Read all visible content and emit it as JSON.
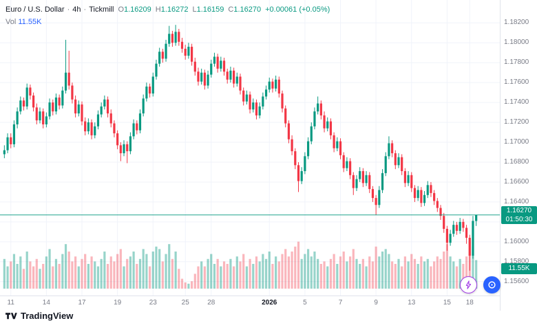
{
  "colors": {
    "up": "#089981",
    "down": "#F23645",
    "accent_blue": "#2962FF",
    "grid": "#f0f3fa",
    "axis_text": "#787b86",
    "badge_bg": "#089981"
  },
  "header": {
    "symbol": "Euro / U.S. Dollar",
    "sep": "·",
    "interval": "4h",
    "broker": "Tickmill",
    "o_label": "O",
    "o": "1.16209",
    "h_label": "H",
    "h": "1.16272",
    "l_label": "L",
    "l": "1.16159",
    "c_label": "C",
    "c": "1.16270",
    "change": "+0.00061 (+0.05%)",
    "vol_label": "Vol",
    "vol_value": "11.55K"
  },
  "price_axis": {
    "badge_price": "1.16270",
    "badge_countdown": "01:50:30",
    "vol_badge": "11.55K"
  },
  "footer": {
    "logo_text": "TradingView"
  },
  "icons": {
    "fab1": "lightning-icon",
    "fab2": "assistant-icon"
  },
  "chart_data": {
    "type": "candlestick",
    "title": "Euro / U.S. Dollar · 4h · Tickmill",
    "ylim": [
      1.1546,
      1.1843
    ],
    "y_tick_labels": [
      "1.18200",
      "1.18000",
      "1.17800",
      "1.17600",
      "1.17400",
      "1.17200",
      "1.17000",
      "1.16800",
      "1.16600",
      "1.16400",
      "1.16200",
      "1.16000",
      "1.15800",
      "1.15600"
    ],
    "x_ticks": [
      {
        "label": "11",
        "i": 2
      },
      {
        "label": "14",
        "i": 13
      },
      {
        "label": "17",
        "i": 24
      },
      {
        "label": "19",
        "i": 35
      },
      {
        "label": "23",
        "i": 46
      },
      {
        "label": "25",
        "i": 56
      },
      {
        "label": "28",
        "i": 64
      },
      {
        "label": "2026",
        "i": 82,
        "major": true
      },
      {
        "label": "5",
        "i": 93
      },
      {
        "label": "7",
        "i": 104
      },
      {
        "label": "9",
        "i": 115
      },
      {
        "label": "13",
        "i": 126
      },
      {
        "label": "15",
        "i": 137
      },
      {
        "label": "18",
        "i": 144
      }
    ],
    "current_price": 1.1627,
    "last_volume_k": 11.55,
    "candles": [
      [
        1.1688,
        1.1697,
        1.1684,
        1.1692
      ],
      [
        1.1692,
        1.1709,
        1.1689,
        1.1705
      ],
      [
        1.1705,
        1.1709,
        1.1694,
        1.1698
      ],
      [
        1.1698,
        1.1722,
        1.1695,
        1.1718
      ],
      [
        1.1718,
        1.1735,
        1.1714,
        1.1731
      ],
      [
        1.1731,
        1.1746,
        1.1728,
        1.1742
      ],
      [
        1.1742,
        1.1745,
        1.1732,
        1.1736
      ],
      [
        1.1736,
        1.1759,
        1.1733,
        1.1755
      ],
      [
        1.1755,
        1.1758,
        1.1743,
        1.1747
      ],
      [
        1.1747,
        1.175,
        1.1731,
        1.1735
      ],
      [
        1.1735,
        1.1739,
        1.1718,
        1.1722
      ],
      [
        1.1722,
        1.1735,
        1.1719,
        1.1731
      ],
      [
        1.1731,
        1.1734,
        1.1714,
        1.1718
      ],
      [
        1.1718,
        1.173,
        1.1715,
        1.1726
      ],
      [
        1.1726,
        1.1744,
        1.1723,
        1.174
      ],
      [
        1.174,
        1.1743,
        1.1727,
        1.1731
      ],
      [
        1.1731,
        1.1749,
        1.1728,
        1.1745
      ],
      [
        1.1745,
        1.1748,
        1.1733,
        1.1737
      ],
      [
        1.1737,
        1.1756,
        1.1734,
        1.1752
      ],
      [
        1.1752,
        1.1803,
        1.1749,
        1.177
      ],
      [
        1.177,
        1.1792,
        1.1753,
        1.1757
      ],
      [
        1.1757,
        1.176,
        1.1739,
        1.1743
      ],
      [
        1.1743,
        1.1747,
        1.1725,
        1.1729
      ],
      [
        1.1729,
        1.1742,
        1.1726,
        1.1738
      ],
      [
        1.1738,
        1.1741,
        1.1717,
        1.1721
      ],
      [
        1.1721,
        1.1725,
        1.1707,
        1.1711
      ],
      [
        1.1711,
        1.1724,
        1.1708,
        1.172
      ],
      [
        1.172,
        1.1723,
        1.1703,
        1.1707
      ],
      [
        1.1707,
        1.172,
        1.1704,
        1.1716
      ],
      [
        1.1716,
        1.1732,
        1.1713,
        1.1728
      ],
      [
        1.1728,
        1.174,
        1.1725,
        1.1736
      ],
      [
        1.1736,
        1.1747,
        1.1733,
        1.1743
      ],
      [
        1.1743,
        1.1746,
        1.1725,
        1.1729
      ],
      [
        1.1729,
        1.1733,
        1.1715,
        1.1719
      ],
      [
        1.1719,
        1.1722,
        1.1705,
        1.1709
      ],
      [
        1.1709,
        1.1712,
        1.1693,
        1.1697
      ],
      [
        1.1697,
        1.17,
        1.1681,
        1.1689
      ],
      [
        1.1689,
        1.1702,
        1.1686,
        1.1698
      ],
      [
        1.1698,
        1.1701,
        1.1679,
        1.1691
      ],
      [
        1.1691,
        1.171,
        1.1688,
        1.1706
      ],
      [
        1.1706,
        1.1723,
        1.1703,
        1.1719
      ],
      [
        1.1719,
        1.1722,
        1.1708,
        1.1712
      ],
      [
        1.1712,
        1.1733,
        1.1709,
        1.1729
      ],
      [
        1.1729,
        1.1748,
        1.1726,
        1.1744
      ],
      [
        1.1744,
        1.176,
        1.1741,
        1.1756
      ],
      [
        1.1756,
        1.1759,
        1.1745,
        1.1749
      ],
      [
        1.1749,
        1.177,
        1.1746,
        1.1766
      ],
      [
        1.1766,
        1.1783,
        1.1763,
        1.1779
      ],
      [
        1.1779,
        1.1795,
        1.1776,
        1.1791
      ],
      [
        1.1791,
        1.1794,
        1.178,
        1.1784
      ],
      [
        1.1784,
        1.1803,
        1.1781,
        1.1799
      ],
      [
        1.1799,
        1.1817,
        1.1796,
        1.1809
      ],
      [
        1.1809,
        1.1812,
        1.1796,
        1.18
      ],
      [
        1.18,
        1.1818,
        1.1797,
        1.1811
      ],
      [
        1.1811,
        1.1814,
        1.1797,
        1.1801
      ],
      [
        1.1801,
        1.1805,
        1.179,
        1.1794
      ],
      [
        1.1794,
        1.1798,
        1.1783,
        1.1787
      ],
      [
        1.1787,
        1.18,
        1.1784,
        1.1796
      ],
      [
        1.1796,
        1.1799,
        1.1777,
        1.1781
      ],
      [
        1.1781,
        1.1785,
        1.1767,
        1.1771
      ],
      [
        1.1771,
        1.1775,
        1.1757,
        1.1761
      ],
      [
        1.1761,
        1.1774,
        1.1758,
        1.177
      ],
      [
        1.177,
        1.1773,
        1.1753,
        1.1757
      ],
      [
        1.1757,
        1.1772,
        1.1754,
        1.1768
      ],
      [
        1.1768,
        1.1783,
        1.1765,
        1.1779
      ],
      [
        1.1779,
        1.179,
        1.1776,
        1.1786
      ],
      [
        1.1786,
        1.1789,
        1.177,
        1.1774
      ],
      [
        1.1774,
        1.1786,
        1.1771,
        1.1782
      ],
      [
        1.1782,
        1.1785,
        1.1767,
        1.1771
      ],
      [
        1.1771,
        1.1774,
        1.1759,
        1.1763
      ],
      [
        1.1763,
        1.1776,
        1.176,
        1.1772
      ],
      [
        1.1772,
        1.1775,
        1.1755,
        1.1759
      ],
      [
        1.1759,
        1.177,
        1.1756,
        1.1766
      ],
      [
        1.1766,
        1.1769,
        1.1748,
        1.1752
      ],
      [
        1.1752,
        1.1755,
        1.1737,
        1.1741
      ],
      [
        1.1741,
        1.1752,
        1.1738,
        1.1748
      ],
      [
        1.1748,
        1.1751,
        1.1729,
        1.1733
      ],
      [
        1.1733,
        1.1744,
        1.173,
        1.174
      ],
      [
        1.174,
        1.1743,
        1.1723,
        1.1727
      ],
      [
        1.1727,
        1.174,
        1.1724,
        1.1736
      ],
      [
        1.1736,
        1.175,
        1.1733,
        1.1746
      ],
      [
        1.1746,
        1.1757,
        1.1743,
        1.1753
      ],
      [
        1.1753,
        1.1765,
        1.175,
        1.1761
      ],
      [
        1.1761,
        1.1764,
        1.175,
        1.1754
      ],
      [
        1.1754,
        1.1767,
        1.1751,
        1.1763
      ],
      [
        1.1763,
        1.1766,
        1.1745,
        1.1749
      ],
      [
        1.1749,
        1.1752,
        1.173,
        1.1734
      ],
      [
        1.1734,
        1.1737,
        1.1715,
        1.1719
      ],
      [
        1.1719,
        1.1722,
        1.1699,
        1.1703
      ],
      [
        1.1703,
        1.1707,
        1.1687,
        1.1691
      ],
      [
        1.1691,
        1.1694,
        1.1673,
        1.1677
      ],
      [
        1.1677,
        1.168,
        1.165,
        1.1661
      ],
      [
        1.1661,
        1.1675,
        1.1658,
        1.1671
      ],
      [
        1.1671,
        1.169,
        1.1668,
        1.1686
      ],
      [
        1.1686,
        1.1705,
        1.1683,
        1.1701
      ],
      [
        1.1701,
        1.172,
        1.1698,
        1.1716
      ],
      [
        1.1716,
        1.1735,
        1.1713,
        1.1731
      ],
      [
        1.1731,
        1.1746,
        1.1728,
        1.1739
      ],
      [
        1.1739,
        1.1742,
        1.1723,
        1.1727
      ],
      [
        1.1727,
        1.1731,
        1.171,
        1.1714
      ],
      [
        1.1714,
        1.1725,
        1.1711,
        1.1721
      ],
      [
        1.1721,
        1.1724,
        1.1703,
        1.1707
      ],
      [
        1.1707,
        1.171,
        1.169,
        1.1694
      ],
      [
        1.1694,
        1.1705,
        1.1691,
        1.1701
      ],
      [
        1.1701,
        1.1704,
        1.1683,
        1.1687
      ],
      [
        1.1687,
        1.169,
        1.167,
        1.1674
      ],
      [
        1.1674,
        1.1685,
        1.1671,
        1.1681
      ],
      [
        1.1681,
        1.1684,
        1.1663,
        1.1667
      ],
      [
        1.1667,
        1.167,
        1.1647,
        1.1654
      ],
      [
        1.1654,
        1.1667,
        1.1651,
        1.1663
      ],
      [
        1.1663,
        1.1675,
        1.166,
        1.1671
      ],
      [
        1.1671,
        1.1674,
        1.1655,
        1.1659
      ],
      [
        1.1659,
        1.1671,
        1.1656,
        1.1667
      ],
      [
        1.1667,
        1.167,
        1.1649,
        1.1653
      ],
      [
        1.1653,
        1.1656,
        1.164,
        1.1644
      ],
      [
        1.1644,
        1.1647,
        1.1627,
        1.1637
      ],
      [
        1.1637,
        1.1656,
        1.1634,
        1.1652
      ],
      [
        1.1652,
        1.1673,
        1.1649,
        1.1669
      ],
      [
        1.1669,
        1.169,
        1.1666,
        1.1686
      ],
      [
        1.1686,
        1.1706,
        1.1683,
        1.1699
      ],
      [
        1.1699,
        1.1702,
        1.1685,
        1.1689
      ],
      [
        1.1689,
        1.1692,
        1.1673,
        1.1677
      ],
      [
        1.1677,
        1.1689,
        1.1674,
        1.1685
      ],
      [
        1.1685,
        1.1688,
        1.1667,
        1.1671
      ],
      [
        1.1671,
        1.1674,
        1.1655,
        1.1659
      ],
      [
        1.1659,
        1.1671,
        1.1656,
        1.1667
      ],
      [
        1.1667,
        1.167,
        1.165,
        1.1654
      ],
      [
        1.1654,
        1.1657,
        1.164,
        1.1644
      ],
      [
        1.1644,
        1.1656,
        1.1641,
        1.1652
      ],
      [
        1.1652,
        1.1655,
        1.1635,
        1.1639
      ],
      [
        1.1639,
        1.1651,
        1.1636,
        1.1647
      ],
      [
        1.1647,
        1.1661,
        1.1644,
        1.1657
      ],
      [
        1.1657,
        1.166,
        1.1645,
        1.1649
      ],
      [
        1.1649,
        1.1652,
        1.1637,
        1.1641
      ],
      [
        1.1641,
        1.1644,
        1.163,
        1.1634
      ],
      [
        1.1634,
        1.1637,
        1.1622,
        1.1626
      ],
      [
        1.1626,
        1.1629,
        1.1609,
        1.1613
      ],
      [
        1.1613,
        1.1616,
        1.1591,
        1.1599
      ],
      [
        1.1599,
        1.1612,
        1.1596,
        1.1608
      ],
      [
        1.1608,
        1.1621,
        1.1605,
        1.1617
      ],
      [
        1.1617,
        1.162,
        1.1607,
        1.1611
      ],
      [
        1.1611,
        1.1624,
        1.1608,
        1.162
      ],
      [
        1.162,
        1.1623,
        1.161,
        1.1614
      ],
      [
        1.1614,
        1.1617,
        1.1598,
        1.1604
      ],
      [
        1.1604,
        1.1607,
        1.1571,
        1.1586
      ],
      [
        1.1586,
        1.1626,
        1.1583,
        1.1621
      ],
      [
        1.16209,
        1.16272,
        1.16159,
        1.1627
      ]
    ],
    "volumes_k": [
      12,
      9,
      11,
      14,
      10,
      13,
      8,
      15,
      11,
      9,
      12,
      8,
      10,
      13,
      16,
      9,
      12,
      10,
      14,
      18,
      15,
      11,
      13,
      9,
      12,
      14,
      10,
      13,
      11,
      9,
      12,
      15,
      10,
      13,
      11,
      14,
      16,
      9,
      12,
      13,
      15,
      10,
      12,
      16,
      14,
      9,
      15,
      17,
      16,
      11,
      14,
      18,
      12,
      15,
      8,
      4,
      2.5,
      2,
      3,
      6,
      9,
      11,
      9,
      12,
      14,
      10,
      12,
      9,
      11,
      10,
      12,
      9,
      13,
      11,
      14,
      9,
      12,
      10,
      13,
      11,
      14,
      12,
      15,
      10,
      13,
      11,
      14,
      16,
      13,
      15,
      17,
      19,
      12,
      14,
      16,
      13,
      15,
      12,
      10,
      11,
      9,
      12,
      14,
      10,
      13,
      15,
      11,
      13,
      16,
      12,
      10,
      12,
      9,
      13,
      11,
      17,
      13,
      15,
      16,
      14,
      11,
      10,
      12,
      9,
      13,
      11,
      14,
      12,
      10,
      13,
      11,
      12,
      9,
      11,
      13,
      12,
      15,
      18,
      13,
      11,
      9,
      12,
      10,
      13,
      19,
      17,
      11.55
    ]
  }
}
